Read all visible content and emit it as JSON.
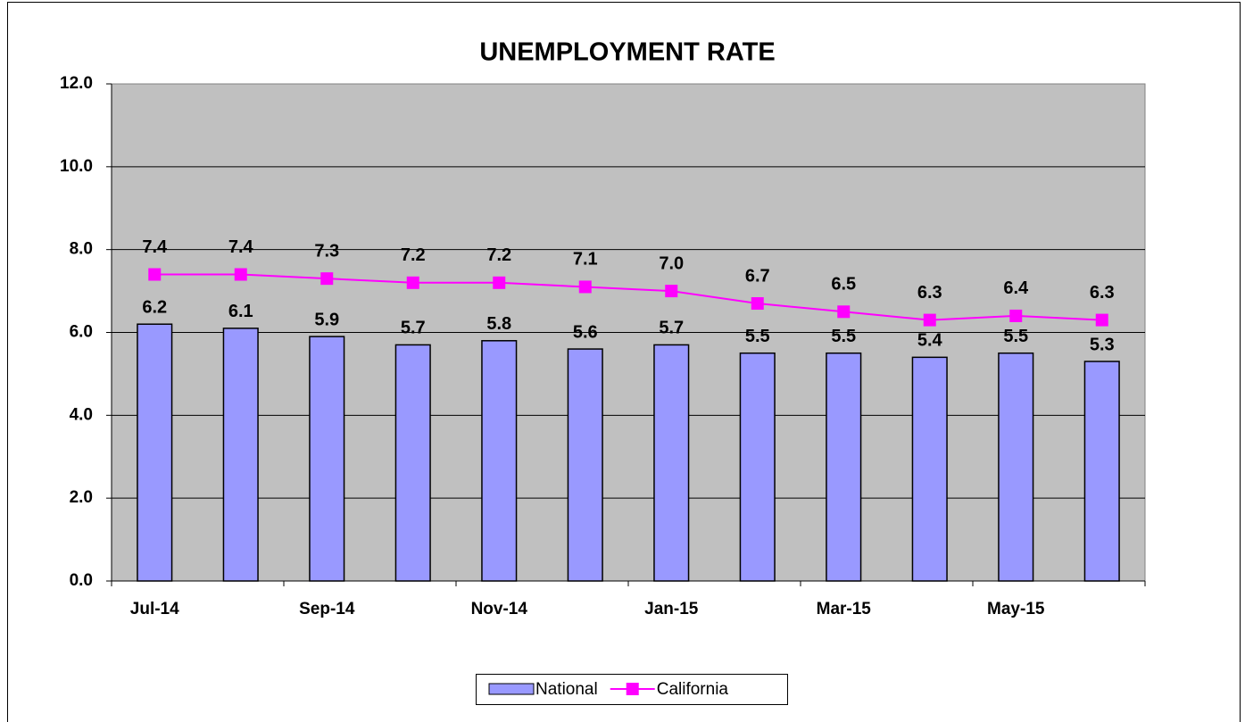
{
  "chart_data": {
    "type": "bar",
    "title": "UNEMPLOYMENT RATE",
    "categories": [
      "Jul-14",
      null,
      "Sep-14",
      null,
      "Nov-14",
      null,
      "Jan-15",
      null,
      "Mar-15",
      null,
      "May-15",
      null
    ],
    "series": [
      {
        "name": "National",
        "type": "bar",
        "color": "#9999ff",
        "values": [
          6.2,
          6.1,
          5.9,
          5.7,
          5.8,
          5.6,
          5.7,
          5.5,
          5.5,
          5.4,
          5.5,
          5.3
        ],
        "value_labels": [
          "6.2",
          "6.1",
          "5.9",
          "5.7",
          "5.8",
          "5.6",
          "5.7",
          "5.5",
          "5.5",
          "5.4",
          "5.5",
          "5.3"
        ]
      },
      {
        "name": "California",
        "type": "line",
        "color": "#ff00ff",
        "values": [
          7.4,
          7.4,
          7.3,
          7.2,
          7.2,
          7.1,
          7.0,
          6.7,
          6.5,
          6.3,
          6.4,
          6.3
        ],
        "value_labels": [
          "7.4",
          "7.4",
          "7.3",
          "7.2",
          "7.2",
          "7.1",
          "7.0",
          "6.7",
          "6.5",
          "6.3",
          "6.4",
          "6.3"
        ]
      }
    ],
    "ylim": [
      0,
      12
    ],
    "yticks": [
      {
        "value": 0,
        "label": "0.0"
      },
      {
        "value": 2,
        "label": "2.0"
      },
      {
        "value": 4,
        "label": "4.0"
      },
      {
        "value": 6,
        "label": "6.0"
      },
      {
        "value": 8,
        "label": "8.0"
      },
      {
        "value": 10,
        "label": "10.0"
      },
      {
        "value": 12,
        "label": "12.0"
      }
    ],
    "grid": true,
    "legend": "bottom"
  }
}
